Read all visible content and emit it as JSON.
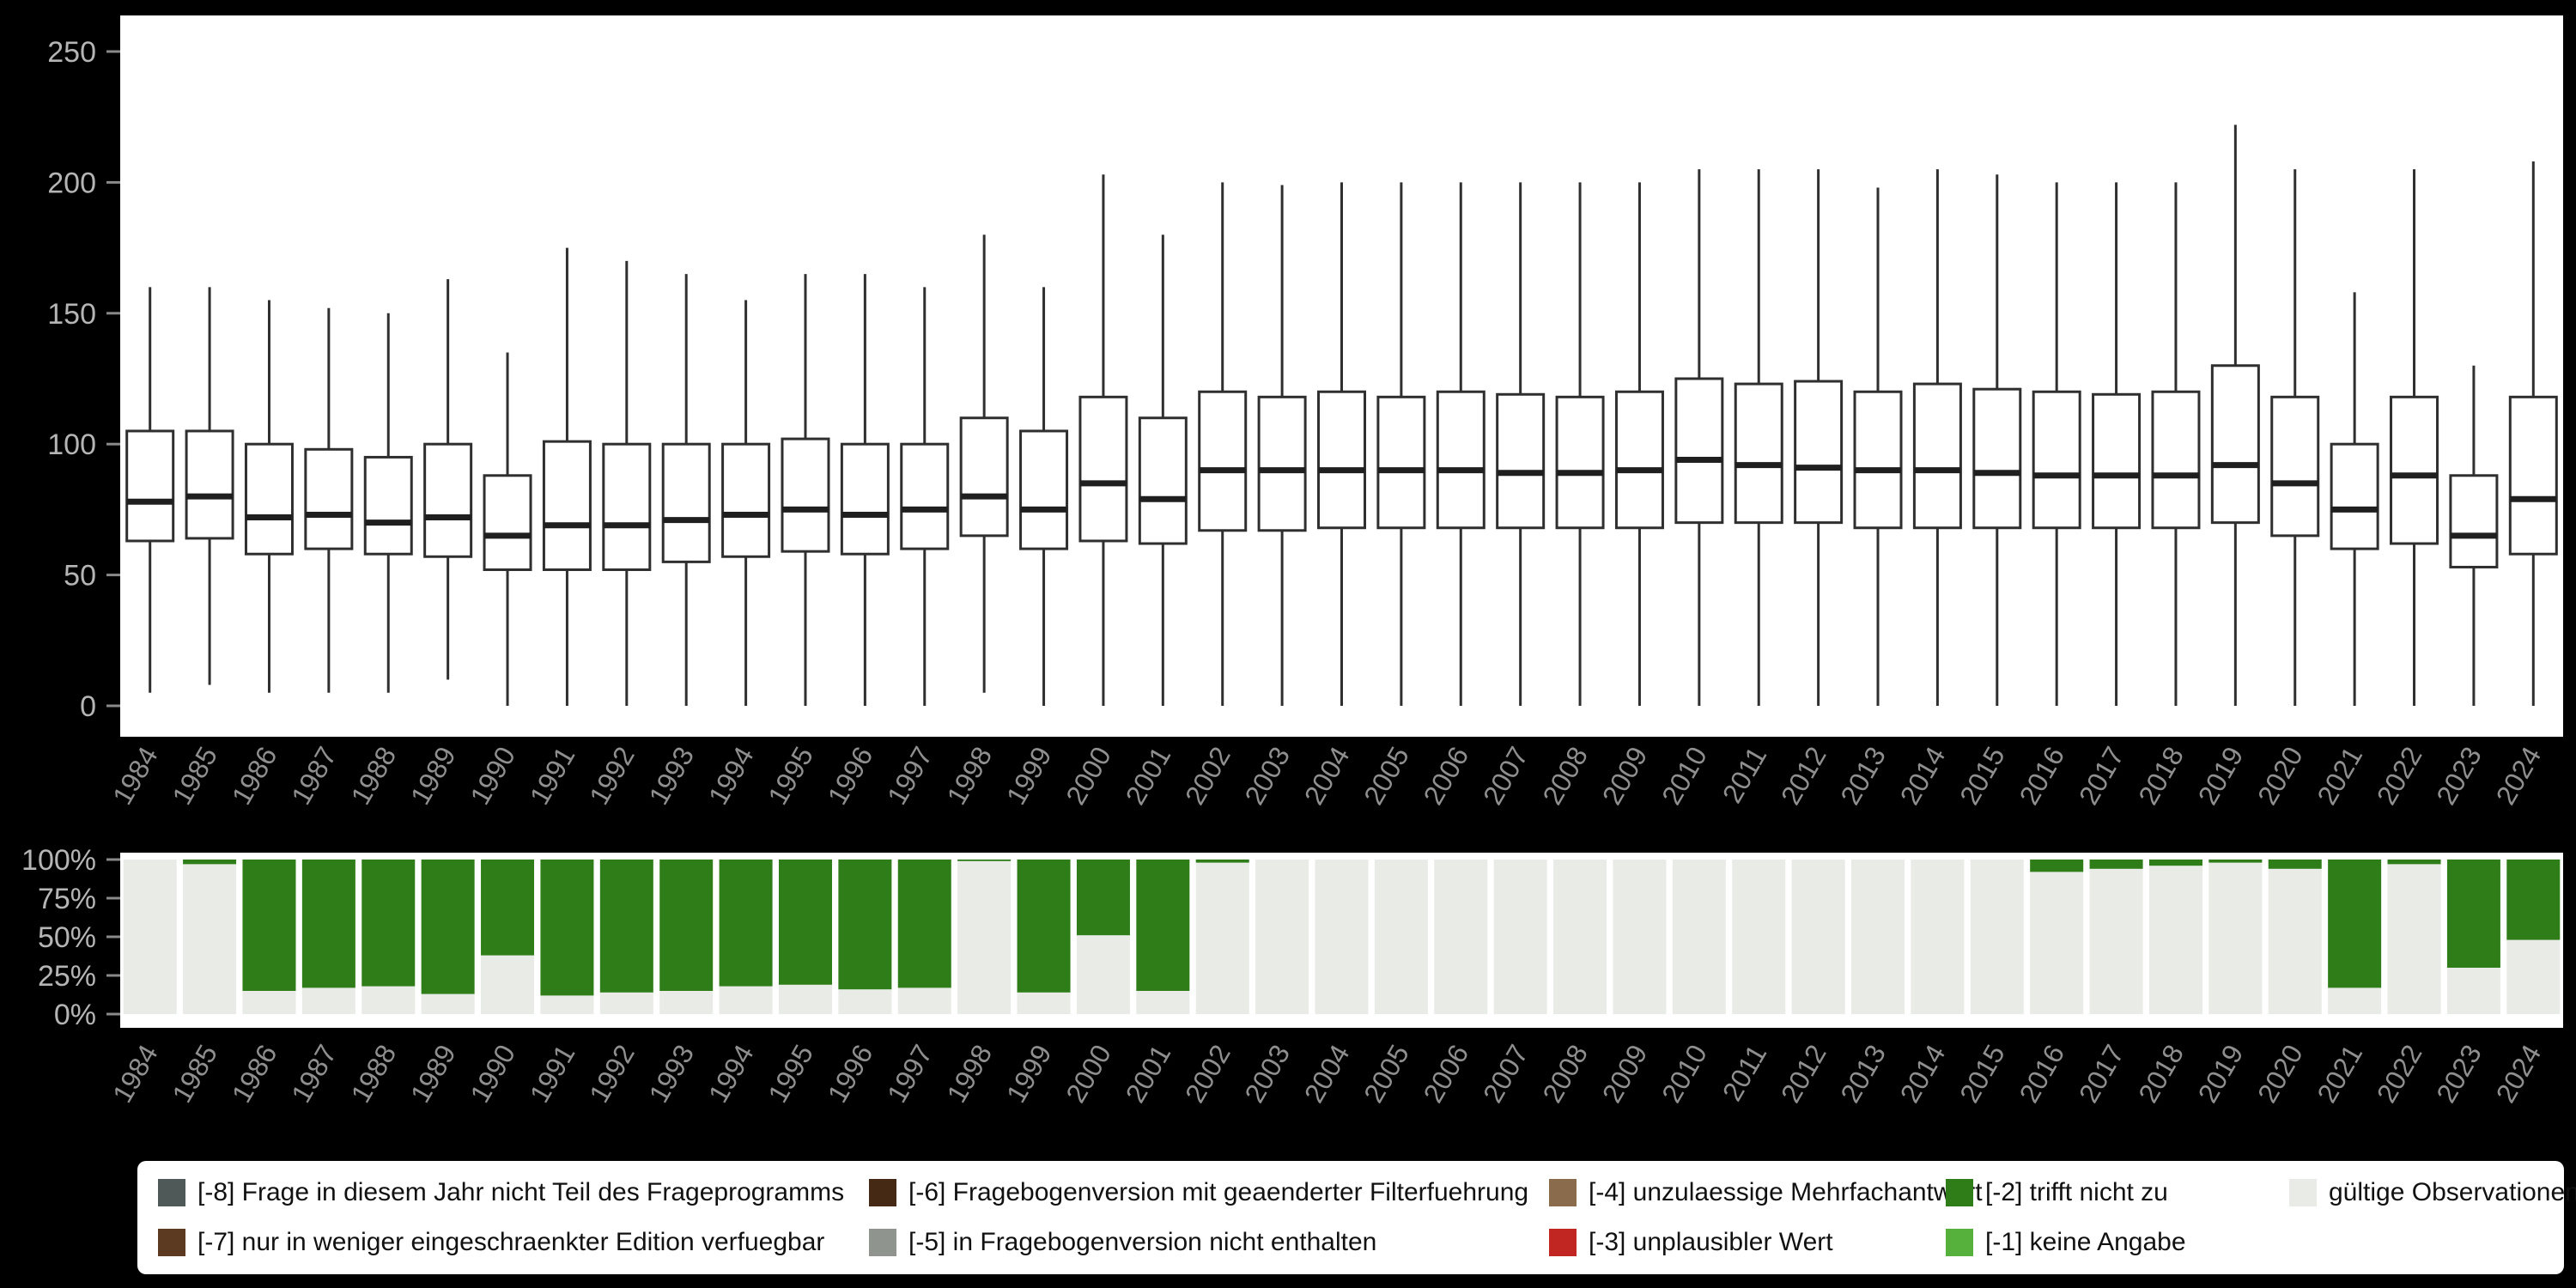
{
  "colors": {
    "background": "#000000",
    "panel": "#ffffff",
    "box_stroke": "#2f2f2f",
    "median_stroke": "#1f1f1f",
    "axis_tick_text": "#b5b5b5",
    "year_label_text": "#8f8f8f",
    "tick_mark": "#8a8a8a",
    "invalid_green": "#2e7d19",
    "valid_gray": "#e8ebe6"
  },
  "chart_data": [
    {
      "type": "boxplot",
      "title": "",
      "xlabel": "",
      "ylabel": "",
      "ylim": [
        0,
        250
      ],
      "yticks": [
        0,
        50,
        100,
        150,
        200,
        250
      ],
      "grid": false,
      "x": [
        1984,
        1985,
        1986,
        1987,
        1988,
        1989,
        1990,
        1991,
        1992,
        1993,
        1994,
        1995,
        1996,
        1997,
        1998,
        1999,
        2000,
        2001,
        2002,
        2003,
        2004,
        2005,
        2006,
        2007,
        2008,
        2009,
        2010,
        2011,
        2012,
        2013,
        2014,
        2015,
        2016,
        2017,
        2018,
        2019,
        2020,
        2021,
        2022,
        2023,
        2024
      ],
      "box_format": [
        "whisker_low",
        "q1",
        "median",
        "q3",
        "whisker_high"
      ],
      "boxes": [
        [
          5,
          63,
          78,
          105,
          160
        ],
        [
          8,
          64,
          80,
          105,
          160
        ],
        [
          5,
          58,
          72,
          100,
          155
        ],
        [
          5,
          60,
          73,
          98,
          152
        ],
        [
          5,
          58,
          70,
          95,
          150
        ],
        [
          10,
          57,
          72,
          100,
          163
        ],
        [
          0,
          52,
          65,
          88,
          135
        ],
        [
          0,
          52,
          69,
          101,
          175
        ],
        [
          0,
          52,
          69,
          100,
          170
        ],
        [
          0,
          55,
          71,
          100,
          165
        ],
        [
          0,
          57,
          73,
          100,
          155
        ],
        [
          0,
          59,
          75,
          102,
          165
        ],
        [
          0,
          58,
          73,
          100,
          165
        ],
        [
          0,
          60,
          75,
          100,
          160
        ],
        [
          5,
          65,
          80,
          110,
          180
        ],
        [
          0,
          60,
          75,
          105,
          160
        ],
        [
          0,
          63,
          85,
          118,
          203
        ],
        [
          0,
          62,
          79,
          110,
          180
        ],
        [
          0,
          67,
          90,
          120,
          200
        ],
        [
          0,
          67,
          90,
          118,
          199
        ],
        [
          0,
          68,
          90,
          120,
          200
        ],
        [
          0,
          68,
          90,
          118,
          200
        ],
        [
          0,
          68,
          90,
          120,
          200
        ],
        [
          0,
          68,
          89,
          119,
          200
        ],
        [
          0,
          68,
          89,
          118,
          200
        ],
        [
          0,
          68,
          90,
          120,
          200
        ],
        [
          0,
          70,
          94,
          125,
          205
        ],
        [
          0,
          70,
          92,
          123,
          205
        ],
        [
          0,
          70,
          91,
          124,
          205
        ],
        [
          0,
          68,
          90,
          120,
          198
        ],
        [
          0,
          68,
          90,
          123,
          205
        ],
        [
          0,
          68,
          89,
          121,
          203
        ],
        [
          0,
          68,
          88,
          120,
          200
        ],
        [
          0,
          68,
          88,
          119,
          200
        ],
        [
          0,
          68,
          88,
          120,
          200
        ],
        [
          0,
          70,
          92,
          130,
          222
        ],
        [
          0,
          65,
          85,
          118,
          205
        ],
        [
          0,
          60,
          75,
          100,
          158
        ],
        [
          0,
          62,
          88,
          118,
          205
        ],
        [
          0,
          53,
          65,
          88,
          130
        ],
        [
          0,
          58,
          79,
          118,
          208
        ]
      ]
    },
    {
      "type": "bar",
      "subtype": "stacked-percent",
      "title": "",
      "xlabel": "",
      "ylabel": "",
      "ylim": [
        0,
        100
      ],
      "yticks": [
        {
          "label": "0%",
          "value": 0
        },
        {
          "label": "25%",
          "value": 25
        },
        {
          "label": "50%",
          "value": 50
        },
        {
          "label": "75%",
          "value": 75
        },
        {
          "label": "100%",
          "value": 100
        }
      ],
      "categories": [
        1984,
        1985,
        1986,
        1987,
        1988,
        1989,
        1990,
        1991,
        1992,
        1993,
        1994,
        1995,
        1996,
        1997,
        1998,
        1999,
        2000,
        2001,
        2002,
        2003,
        2004,
        2005,
        2006,
        2007,
        2008,
        2009,
        2010,
        2011,
        2012,
        2013,
        2014,
        2015,
        2016,
        2017,
        2018,
        2019,
        2020,
        2021,
        2022,
        2023,
        2024
      ],
      "series": [
        {
          "name": "[-2] trifft nicht zu",
          "color": "#2e7d19",
          "position": "top",
          "values": [
            0,
            3,
            85,
            83,
            82,
            87,
            62,
            88,
            86,
            85,
            82,
            81,
            84,
            83,
            1,
            86,
            49,
            85,
            2,
            0,
            0,
            0,
            0,
            0,
            0,
            0,
            0,
            0,
            0,
            0,
            0,
            0,
            8,
            6,
            4,
            2,
            6,
            83,
            3,
            70,
            52
          ]
        },
        {
          "name": "gültige Observationen",
          "color": "#e8ebe6",
          "position": "bottom",
          "values": [
            100,
            97,
            15,
            17,
            18,
            13,
            38,
            12,
            14,
            15,
            18,
            19,
            16,
            17,
            99,
            14,
            51,
            15,
            98,
            100,
            100,
            100,
            100,
            100,
            100,
            100,
            100,
            100,
            100,
            100,
            100,
            100,
            92,
            94,
            96,
            98,
            94,
            17,
            97,
            30,
            48
          ]
        }
      ]
    }
  ],
  "legend": {
    "items": [
      {
        "label": "[-8] Frage in diesem Jahr nicht Teil des Frageprogramms",
        "color": "#4f5957"
      },
      {
        "label": "[-6] Fragebogenversion mit geaenderter Filterfuehrung",
        "color": "#452915"
      },
      {
        "label": "[-4] unzulaessige Mehrfachantwort",
        "color": "#8a6c4c"
      },
      {
        "label": "[-2] trifft nicht zu",
        "color": "#2e7d19"
      },
      {
        "label": "gültige Observationen",
        "color": "#e8ebe6"
      },
      {
        "label": "[-7] nur in weniger eingeschraenkter Edition verfuegbar",
        "color": "#5b3a21"
      },
      {
        "label": "[-5] in Fragebogenversion nicht enthalten",
        "color": "#8f948f"
      },
      {
        "label": "[-3] unplausibler Wert",
        "color": "#c12622"
      },
      {
        "label": "[-1] keine Angabe",
        "color": "#56b13c"
      }
    ]
  }
}
